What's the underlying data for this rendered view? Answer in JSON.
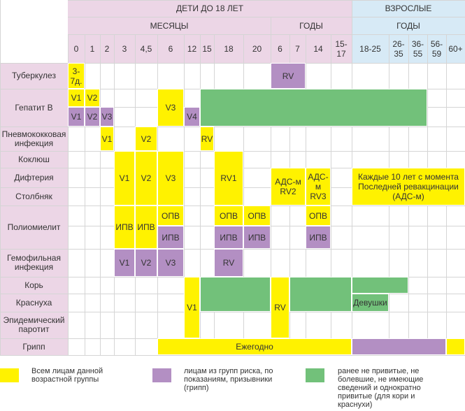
{
  "header": {
    "children": "ДЕТИ ДО 18 ЛЕТ",
    "adults": "ВЗРОСЛЫЕ",
    "months": "МЕСЯЦЫ",
    "children_years": "ГОДЫ",
    "adults_years": "ГОДЫ"
  },
  "ages": [
    "0",
    "1",
    "2",
    "3",
    "4,5",
    "6",
    "12",
    "15",
    "18",
    "20",
    "6",
    "7",
    "14",
    "15-17",
    "18-25",
    "26-35",
    "36-55",
    "56-59",
    "60+"
  ],
  "rows": [
    "Туберкулез",
    "Гепатит В",
    "Пневмококковая инфекция",
    "Коклюш",
    "Дифтерия",
    "Столбняк",
    "Полиомиелит",
    "Гемофильная инфекция",
    "Корь",
    "Краснуха",
    "Эпидемический паротит",
    "Грипп"
  ],
  "marks": [
    "3-7д.",
    "RV",
    "V1",
    "V2",
    "V3",
    "V1",
    "V2",
    "V3",
    "V4",
    "V1",
    "V2",
    "RV",
    "V1",
    "V2",
    "V3",
    "RV1",
    "АДС-м RV2",
    "АДС-м RV3",
    "Каждые 10 лет с момента Последней ревакцинации (АДС-м)",
    "ИПВ",
    "ИПВ",
    "ОПВ",
    "ИПВ",
    "ОПВ",
    "ИПВ",
    "ОПВ",
    "ИПВ",
    "ОПВ",
    "ИПВ",
    "V1",
    "V2",
    "V3",
    "RV",
    "V1",
    "RV",
    "Девушки",
    "Ежегодно"
  ],
  "legend": [
    {
      "color": "#fff200",
      "text": "Всем лицам данной возрастной группы"
    },
    {
      "color": "#b38fc3",
      "text": "лицам из групп риска, по показаниям, призывники (грипп)"
    },
    {
      "color": "#72c17a",
      "text": "ранее не привитые, не болевшие, не имеющие сведений и однократно привитые (для кори и краснухи)"
    }
  ]
}
